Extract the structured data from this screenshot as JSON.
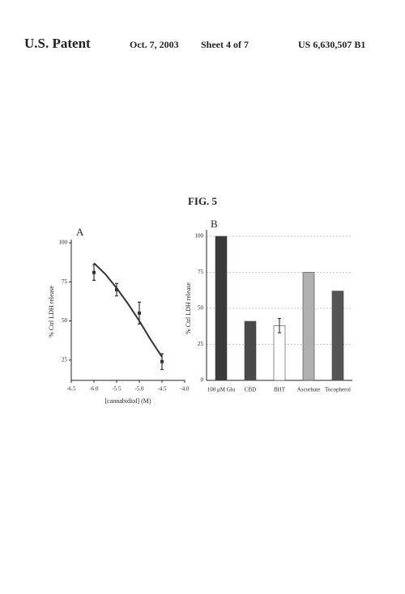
{
  "header": {
    "left": "U.S. Patent",
    "date": "Oct. 7, 2003",
    "sheet": "Sheet 4 of 7",
    "number": "US 6,630,507 B1"
  },
  "figure_title": "FIG. 5",
  "chart_data": [
    {
      "type": "line",
      "panel": "A",
      "x_label": "[cannabidiol] (M)",
      "y_label": "% Ctrl LDH release",
      "x": [
        -6.0,
        -5.5,
        -5.0,
        -4.5
      ],
      "values": [
        81,
        70,
        55,
        24
      ],
      "errors": [
        5,
        4,
        7,
        5
      ],
      "fit": {
        "x": [
          -6.0,
          -5.75,
          -5.5,
          -5.25,
          -5.0,
          -4.75,
          -4.5
        ],
        "values": [
          87,
          80,
          71,
          61,
          50,
          38,
          27
        ]
      },
      "color": "#333333",
      "xlim": [
        -6.5,
        -4.0
      ],
      "xticks": [
        -6.5,
        {
          "value": -6,
          "label": "-6.0"
        },
        -5.5,
        {
          "value": -5,
          "label": "-5.0"
        },
        -4.5,
        {
          "value": -4,
          "label": "-4.0"
        }
      ],
      "ylim": [
        12,
        100
      ],
      "yticks": [
        25,
        50,
        75,
        100
      ]
    },
    {
      "type": "bar",
      "panel": "B",
      "y_label": "% Ctrl LDH release",
      "categories": [
        "100 μM Glu",
        "CBD",
        "BHT",
        "Ascorbate",
        "Tocopherol"
      ],
      "values": [
        100,
        41,
        38,
        75,
        62
      ],
      "errors": [
        null,
        null,
        5,
        null,
        null
      ],
      "colors": [
        "#3a3a3a",
        "#4a4a4a",
        "#ffffff",
        "#b0b0b0",
        "#555555"
      ],
      "ylim": [
        0,
        100
      ],
      "yticks": [
        0,
        25,
        50,
        75,
        100
      ],
      "grid": true
    }
  ]
}
